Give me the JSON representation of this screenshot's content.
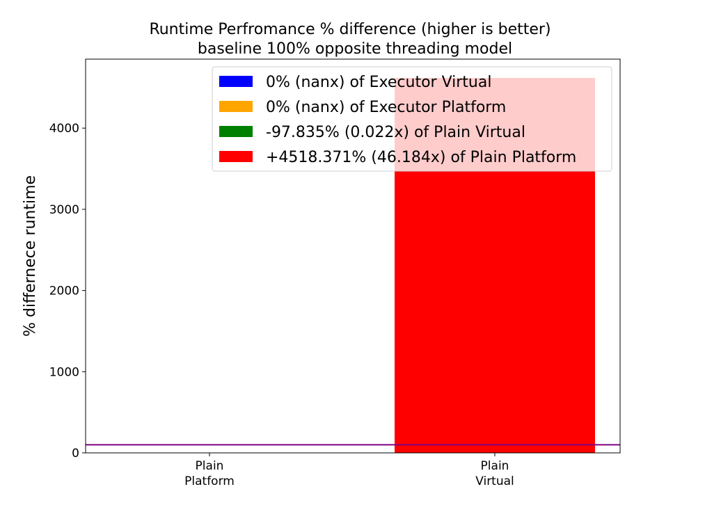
{
  "chart_data": {
    "type": "bar",
    "title": "Runtime Perfromance % difference (higher is better)",
    "subtitle": "baseline 100% opposite threading model",
    "xlabel": "",
    "ylabel": "% differnece runtime",
    "categories": [
      {
        "line1": "Plain",
        "line2": "Platform"
      },
      {
        "line1": "Plain",
        "line2": "Virtual"
      }
    ],
    "bars": [
      {
        "category_index": 0,
        "value": 2.165,
        "color": "#008000"
      },
      {
        "category_index": 1,
        "value": 4618.371,
        "color": "#ff0000"
      }
    ],
    "highlight": {
      "category_index": 1,
      "value": 4618.371,
      "color": "#ffcccc"
    },
    "baseline": {
      "value": 100,
      "color": "#800080"
    },
    "ylim": [
      0,
      4850
    ],
    "yticks": [
      {
        "value": 0,
        "label": "0"
      },
      {
        "value": 1000,
        "label": "1000"
      },
      {
        "value": 2000,
        "label": "2000"
      },
      {
        "value": 3000,
        "label": "3000"
      },
      {
        "value": 4000,
        "label": "4000"
      }
    ],
    "grid": false,
    "legend_position": "top-right",
    "legend": [
      {
        "label": "0% (nanx) of Executor Virtual",
        "color": "#0000ff"
      },
      {
        "label": "0% (nanx) of Executor Platform",
        "color": "#ffa500"
      },
      {
        "label": "-97.835% (0.022x) of Plain Virtual",
        "color": "#008000"
      },
      {
        "label": "+4518.371% (46.184x) of Plain Platform",
        "color": "#ff0000"
      }
    ]
  }
}
